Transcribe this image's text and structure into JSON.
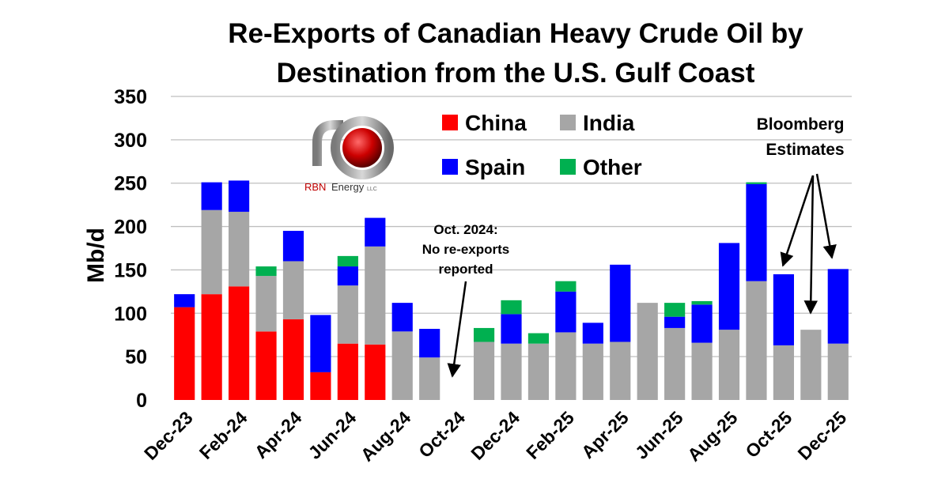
{
  "chart_data": {
    "type": "bar",
    "stacked": true,
    "title": "Re-Exports of Canadian Heavy Crude Oil by Destination from the U.S. Gulf Coast",
    "title_lines": [
      "Re-Exports of Canadian Heavy Crude Oil by",
      "Destination from the U.S. Gulf Coast"
    ],
    "ylabel": "Mb/d",
    "xlabel": "",
    "ylim": [
      0,
      350
    ],
    "yticks": [
      0,
      50,
      100,
      150,
      200,
      250,
      300,
      350
    ],
    "grid": true,
    "legend_position": "top-center",
    "categories": [
      "Dec-23",
      "Jan-24",
      "Feb-24",
      "Mar-24",
      "Apr-24",
      "May-24",
      "Jun-24",
      "Jul-24",
      "Aug-24",
      "Sep-24",
      "Oct-24",
      "Nov-24",
      "Dec-24",
      "Jan-25",
      "Feb-25",
      "Mar-25",
      "Apr-25",
      "May-25",
      "Jun-25",
      "Jul-25",
      "Aug-25",
      "Sep-25",
      "Oct-25",
      "Nov-25",
      "Dec-25"
    ],
    "xtick_labels": [
      "Dec-23",
      "Feb-24",
      "Apr-24",
      "Jun-24",
      "Aug-24",
      "Oct-24",
      "Dec-24",
      "Feb-25",
      "Apr-25",
      "Jun-25",
      "Aug-25",
      "Oct-25",
      "Dec-25"
    ],
    "series": [
      {
        "name": "China",
        "color": "#ff0000",
        "values": [
          107,
          122,
          131,
          79,
          93,
          32,
          65,
          64,
          0,
          0,
          0,
          0,
          0,
          0,
          0,
          0,
          0,
          0,
          0,
          0,
          0,
          0,
          0,
          0,
          0
        ]
      },
      {
        "name": "India",
        "color": "#a6a6a6",
        "values": [
          0,
          97,
          86,
          64,
          67,
          0,
          67,
          113,
          79,
          49,
          0,
          67,
          65,
          65,
          78,
          65,
          67,
          112,
          83,
          66,
          81,
          137,
          63,
          81,
          65
        ]
      },
      {
        "name": "Spain",
        "color": "#0000ff",
        "values": [
          15,
          32,
          36,
          0,
          35,
          66,
          22,
          33,
          33,
          33,
          0,
          0,
          34,
          0,
          47,
          24,
          89,
          0,
          13,
          44,
          100,
          112,
          82,
          0,
          86
        ]
      },
      {
        "name": "Other",
        "color": "#00b050",
        "values": [
          0,
          0,
          0,
          11,
          0,
          0,
          12,
          0,
          0,
          0,
          0,
          16,
          16,
          12,
          12,
          0,
          0,
          0,
          16,
          4,
          0,
          2,
          0,
          0,
          0
        ]
      }
    ],
    "legend": [
      "China",
      "India",
      "Spain",
      "Other"
    ],
    "annotations": [
      {
        "text": [
          "Oct. 2024:",
          "No re-exports",
          "reported"
        ],
        "target": "Oct-24"
      },
      {
        "text": [
          "Bloomberg",
          "Estimates"
        ],
        "targets": [
          "Oct-25",
          "Nov-25",
          "Dec-25"
        ]
      }
    ],
    "logo": {
      "name": "RBN Energy logo",
      "text_main": "RBN",
      "text_rest": "Energy",
      "text_suffix": "LLC"
    }
  }
}
